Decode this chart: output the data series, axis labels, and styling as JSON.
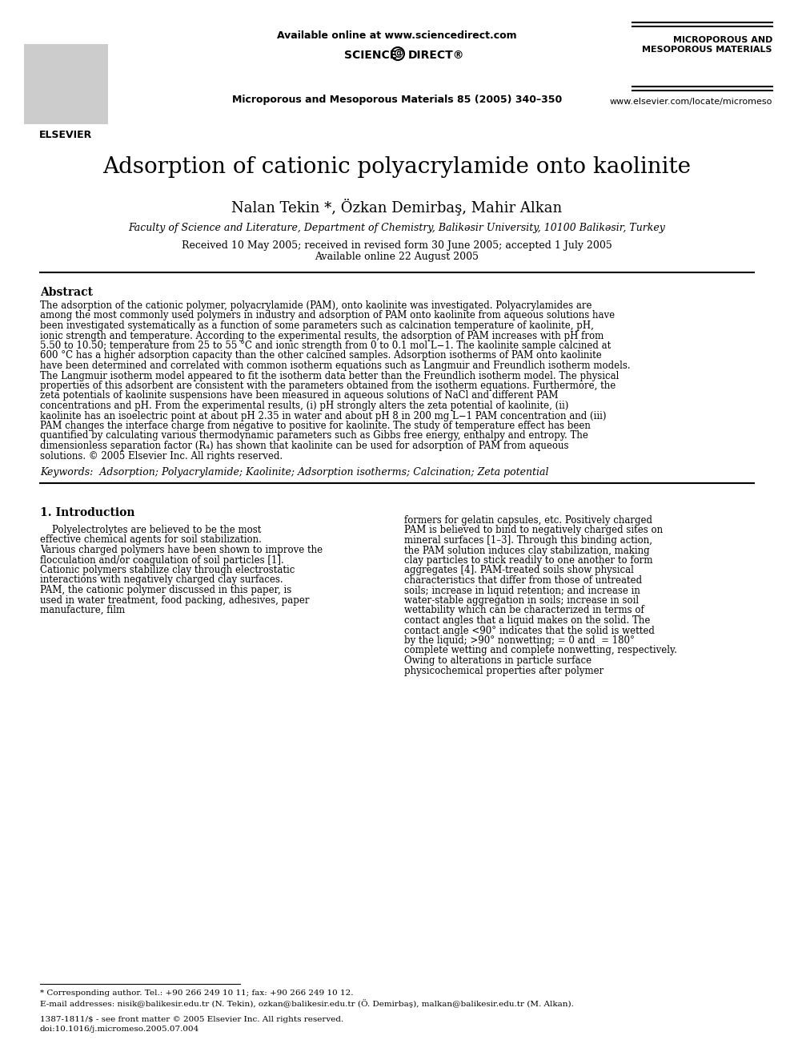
{
  "title": "Adsorption of cationic polyacrylamide onto kaolinite",
  "authors": "Nalan Tekin *, Özkan Demirbaş, Mahir Alkan",
  "affiliation": "Faculty of Science and Literature, Department of Chemistry, Balikəsir University, 10100 Balikəsir, Turkey",
  "received": "Received 10 May 2005; received in revised form 30 June 2005; accepted 1 July 2005",
  "available": "Available online 22 August 2005",
  "journal_header": "Available online at www.sciencedirect.com",
  "journal_name": "Microporous and Mesoporous Materials 85 (2005) 340–350",
  "journal_abbrev": "MICROPOROUS AND\nMESOPOROUS MATERIALS",
  "journal_url": "www.elsevier.com/locate/micromeso",
  "abstract_title": "Abstract",
  "abstract_text": "The adsorption of the cationic polymer, polyacrylamide (PAM), onto kaolinite was investigated. Polyacrylamides are among the most commonly used polymers in industry and adsorption of PAM onto kaolinite from aqueous solutions have been investigated systematically as a function of some parameters such as calcination temperature of kaolinite, pH, ionic strength and temperature. According to the experimental results, the adsorption of PAM increases with pH from 5.50 to 10.50; temperature from 25 to 55 °C and ionic strength from 0 to 0.1 mol L−1. The kaolinite sample calcined at 600 °C has a higher adsorption capacity than the other calcined samples. Adsorption isotherms of PAM onto kaolinite have been determined and correlated with common isotherm equations such as Langmuir and Freundlich isotherm models. The Langmuir isotherm model appeared to fit the isotherm data better than the Freundlich isotherm model. The physical properties of this adsorbent are consistent with the parameters obtained from the isotherm equations. Furthermore, the zeta potentials of kaolinite suspensions have been measured in aqueous solutions of NaCl and different PAM concentrations and pH. From the experimental results, (i) pH strongly alters the zeta potential of kaolinite, (ii) kaolinite has an isoelectric point at about pH 2.35 in water and about pH 8 in 200 mg L−1 PAM concentration and (iii) PAM changes the interface charge from negative to positive for kaolinite. The study of temperature effect has been quantified by calculating various thermodynamic parameters such as Gibbs free energy, enthalpy and entropy. The dimensionless separation factor (R₄) has shown that kaolinite can be used for adsorption of PAM from aqueous solutions.\n© 2005 Elsevier Inc. All rights reserved.",
  "keywords": "Keywords:  Adsorption; Polyacrylamide; Kaolinite; Adsorption isotherms; Calcination; Zeta potential",
  "section1_title": "1. Introduction",
  "section1_col1": "    Polyelectrolytes are believed to be the most effective chemical agents for soil stabilization. Various charged polymers have been shown to improve the flocculation and/or coagulation of soil particles [1]. Cationic polymers stabilize clay through electrostatic interactions with negatively charged clay surfaces. PAM, the cationic polymer discussed in this paper, is used in water treatment, food packing, adhesives, paper manufacture, film",
  "section1_col2": "formers for gelatin capsules, etc. Positively charged PAM is believed to bind to negatively charged sites on mineral surfaces [1–3]. Through this binding action, the PAM solution induces clay stabilization, making clay particles to stick readily to one another to form aggregates [4]. PAM-treated soils show physical characteristics that differ from those of untreated soils; increase in liquid retention; and increase in water-stable aggregation in soils; increase in soil wettability which can be characterized in terms of contact angles that a liquid makes on the solid. The contact angle <90° indicates that the solid is wetted by the liquid; >90° nonwetting; = 0 and  = 180° complete wetting and complete nonwetting, respectively. Owing to alterations in particle surface physicochemical properties after polymer",
  "footnote1": "* Corresponding author. Tel.: +90 266 249 10 11; fax: +90 266 249 10 12.",
  "footnote2": "E-mail addresses: nisik@balikesir.edu.tr (N. Tekin), ozkan@balikesir.edu.tr (Ö. Demirbaş), malkan@balikesir.edu.tr (M. Alkan).",
  "footnote3": "1387-1811/$ - see front matter © 2005 Elsevier Inc. All rights reserved.",
  "footnote4": "doi:10.1016/j.micromeso.2005.07.004",
  "bg_color": "#ffffff",
  "text_color": "#000000"
}
